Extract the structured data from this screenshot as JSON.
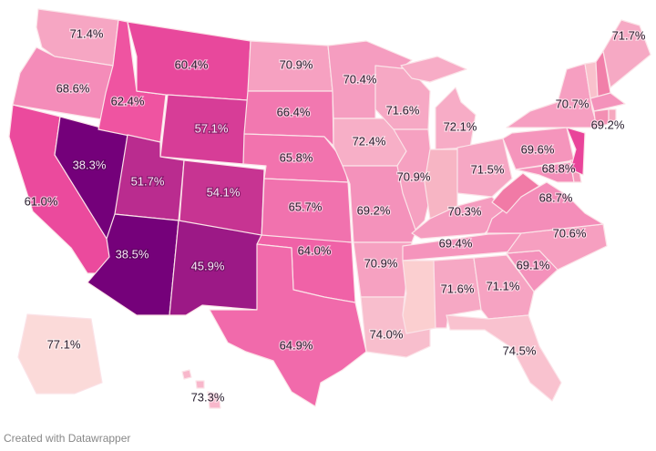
{
  "credit": "Created with Datawrapper",
  "color_scale": {
    "low_value": 38.3,
    "low_color": "#74007a",
    "high_value": 77.1,
    "high_color": "#fbdad9"
  },
  "states": [
    {
      "id": "WA",
      "label": "71.4%",
      "value": 71.4
    },
    {
      "id": "OR",
      "label": "68.6%",
      "value": 68.6
    },
    {
      "id": "CA",
      "label": "61.0%",
      "value": 61.0
    },
    {
      "id": "NV",
      "label": "38.3%",
      "value": 38.3
    },
    {
      "id": "ID",
      "label": "62.4%",
      "value": 62.4
    },
    {
      "id": "MT",
      "label": "60.4%",
      "value": 60.4
    },
    {
      "id": "WY",
      "label": "57.1%",
      "value": 57.1
    },
    {
      "id": "UT",
      "label": "51.7%",
      "value": 51.7
    },
    {
      "id": "CO",
      "label": "54.1%",
      "value": 54.1
    },
    {
      "id": "AZ",
      "label": "38.5%",
      "value": 38.5
    },
    {
      "id": "NM",
      "label": "45.9%",
      "value": 45.9
    },
    {
      "id": "ND",
      "label": "70.9%",
      "value": 70.9
    },
    {
      "id": "SD",
      "label": "66.4%",
      "value": 66.4
    },
    {
      "id": "NE",
      "label": "65.8%",
      "value": 65.8
    },
    {
      "id": "KS",
      "label": "65.7%",
      "value": 65.7
    },
    {
      "id": "OK",
      "label": "64.0%",
      "value": 64.0
    },
    {
      "id": "TX",
      "label": "64.9%",
      "value": 64.9
    },
    {
      "id": "MN",
      "label": "70.4%",
      "value": 70.4
    },
    {
      "id": "IA",
      "label": "72.4%",
      "value": 72.4
    },
    {
      "id": "MO",
      "label": "69.2%",
      "value": 69.2
    },
    {
      "id": "AR",
      "label": "70.9%",
      "value": 70.9
    },
    {
      "id": "LA",
      "label": "74.0%",
      "value": 74.0
    },
    {
      "id": "WI",
      "label": "71.6%",
      "value": 71.6
    },
    {
      "id": "IL",
      "label": "70.9%",
      "value": 70.9
    },
    {
      "id": "MI",
      "label": "72.1%",
      "value": 72.1
    },
    {
      "id": "IN",
      "label": "",
      "fill": "#f7b5c4"
    },
    {
      "id": "OH",
      "label": "71.5%",
      "value": 71.5
    },
    {
      "id": "KY",
      "label": "70.3%",
      "value": 70.3
    },
    {
      "id": "TN",
      "label": "69.4%",
      "value": 69.4
    },
    {
      "id": "MS",
      "label": "",
      "fill": "#fbcfd0"
    },
    {
      "id": "AL",
      "label": "71.6%",
      "value": 71.6
    },
    {
      "id": "GA",
      "label": "71.1%",
      "value": 71.1
    },
    {
      "id": "FL",
      "label": "74.5%",
      "value": 74.5
    },
    {
      "id": "SC",
      "label": "69.1%",
      "value": 69.1
    },
    {
      "id": "NC",
      "label": "70.6%",
      "value": 70.6
    },
    {
      "id": "VA",
      "label": "68.7%",
      "value": 68.7
    },
    {
      "id": "WV",
      "label": "",
      "fill": "#f17aa6"
    },
    {
      "id": "PA",
      "label": "69.6%",
      "value": 69.6
    },
    {
      "id": "MD",
      "label": "68.8%",
      "value": 68.8
    },
    {
      "id": "DE",
      "label": "",
      "fill": "#f49abb"
    },
    {
      "id": "NJ",
      "label": "",
      "fill": "#e9449a"
    },
    {
      "id": "NY",
      "label": "70.7%",
      "value": 70.7
    },
    {
      "id": "VT",
      "label": "",
      "fill": "#f9c1cc"
    },
    {
      "id": "NH",
      "label": "",
      "fill": "#f17fa9"
    },
    {
      "id": "ME",
      "label": "71.7%",
      "value": 71.7
    },
    {
      "id": "MA",
      "label": "69.2%",
      "value": 69.2
    },
    {
      "id": "CT",
      "label": "",
      "fill": "#f38fb3"
    },
    {
      "id": "RI",
      "label": "",
      "fill": "#f6a8bf"
    },
    {
      "id": "AK",
      "label": "77.1%",
      "value": 77.1
    },
    {
      "id": "HI",
      "label": "73.3%",
      "value": 73.3
    }
  ]
}
